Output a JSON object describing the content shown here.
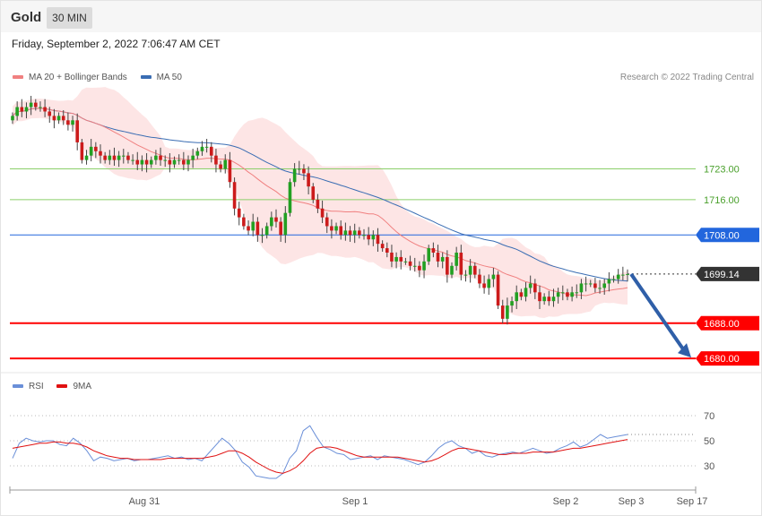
{
  "header": {
    "title": "Gold",
    "timeframe": "30 MIN"
  },
  "datetime": "Friday, September 2, 2022 7:06:47 AM CET",
  "credit": "Research © 2022 Trading Central",
  "colors": {
    "bearish": "#cc1b1b",
    "bullish": "#22a022",
    "ma20": "#f08080",
    "ma50": "#3a6db3",
    "band": "#fde2e2",
    "rsi": "#6a8fd8",
    "rsi_ma": "#e01010",
    "current": "#333333",
    "support": "#ff0000",
    "resistance_res": "#2266dd",
    "resistance_pivot": "#8bcf6a"
  },
  "chart_data": [
    {
      "type": "candlestick",
      "legend": [
        {
          "name": "MA 20 + Bollinger Bands",
          "color": "#f08080"
        },
        {
          "name": "MA 50",
          "color": "#3a6db3"
        }
      ],
      "ylim": [
        1678,
        1743
      ],
      "levels": [
        {
          "label": "1723.00",
          "value": 1723.0,
          "kind": "pivot"
        },
        {
          "label": "1716.00",
          "value": 1716.0,
          "kind": "pivot"
        },
        {
          "label": "1708.00",
          "value": 1708.0,
          "kind": "resistance"
        },
        {
          "label": "1699.14",
          "value": 1699.14,
          "kind": "current"
        },
        {
          "label": "1688.00",
          "value": 1688.0,
          "kind": "support"
        },
        {
          "label": "1680.00",
          "value": 1680.0,
          "kind": "support"
        }
      ],
      "forecast_arrow": {
        "from": 1699.14,
        "to": 1680.0,
        "direction": "down"
      },
      "closes": [
        1735,
        1737,
        1736,
        1737,
        1738,
        1737,
        1737,
        1736,
        1735,
        1734,
        1735,
        1734,
        1733,
        1734,
        1729,
        1725,
        1726,
        1728,
        1727,
        1726,
        1725,
        1726,
        1725,
        1726,
        1726,
        1725,
        1725,
        1724,
        1725,
        1724,
        1725,
        1726,
        1725,
        1725,
        1724,
        1725,
        1725,
        1724,
        1725,
        1726,
        1727,
        1728,
        1728,
        1726,
        1724,
        1723,
        1725,
        1720,
        1714,
        1712,
        1710,
        1709,
        1711,
        1708,
        1708,
        1710,
        1712,
        1711,
        1708,
        1713,
        1720,
        1723,
        1723,
        1722,
        1719,
        1716,
        1714,
        1712,
        1710,
        1709,
        1710,
        1708,
        1709,
        1708,
        1709,
        1708,
        1708,
        1707,
        1708,
        1706,
        1705,
        1704,
        1702,
        1703,
        1702,
        1702,
        1701,
        1701,
        1700,
        1702,
        1705,
        1704,
        1702,
        1703,
        1699,
        1701,
        1704,
        1699,
        1699,
        1701,
        1699,
        1697,
        1696,
        1698,
        1699,
        1692,
        1689,
        1692,
        1693,
        1695,
        1694,
        1696,
        1697,
        1695,
        1693,
        1694,
        1693,
        1694,
        1695,
        1695,
        1694,
        1695,
        1695,
        1697,
        1697,
        1697,
        1696,
        1696,
        1697,
        1698,
        1698,
        1699,
        1699,
        1699.14
      ],
      "x_ticks": [
        "Aug 31",
        "Sep 1",
        "Sep 2",
        "Sep 3",
        "Sep 17"
      ]
    },
    {
      "type": "line",
      "legend": [
        {
          "name": "RSI",
          "color": "#6a8fd8"
        },
        {
          "name": "9MA",
          "color": "#e01010"
        }
      ],
      "ylim": [
        15,
        85
      ],
      "y_ticks": [
        "70",
        "50",
        "30"
      ],
      "y_tick_values": [
        70,
        50,
        30
      ],
      "series": [
        {
          "name": "RSI",
          "values": [
            36,
            48,
            52,
            50,
            49,
            50,
            50,
            47,
            46,
            52,
            48,
            42,
            34,
            37,
            36,
            34,
            35,
            36,
            34,
            35,
            35,
            36,
            37,
            38,
            36,
            37,
            35,
            36,
            34,
            40,
            46,
            52,
            48,
            42,
            33,
            29,
            22,
            21,
            20,
            20,
            24,
            36,
            42,
            58,
            62,
            53,
            45,
            43,
            40,
            39,
            35,
            36,
            37,
            38,
            35,
            38,
            37,
            36,
            35,
            33,
            31,
            33,
            38,
            44,
            48,
            50,
            46,
            44,
            40,
            42,
            38,
            37,
            39,
            40,
            41,
            40,
            42,
            44,
            42,
            40,
            41,
            44,
            46,
            49,
            45,
            47,
            51,
            55,
            52,
            53,
            54,
            55
          ]
        },
        {
          "name": "9MA",
          "values": [
            44,
            45,
            46,
            47,
            48,
            48,
            49,
            49,
            48,
            48,
            47,
            45,
            42,
            40,
            38,
            37,
            36,
            36,
            35,
            35,
            35,
            35,
            35,
            36,
            36,
            36,
            36,
            36,
            36,
            37,
            38,
            40,
            42,
            42,
            40,
            37,
            33,
            30,
            27,
            25,
            24,
            26,
            29,
            34,
            40,
            44,
            45,
            45,
            44,
            42,
            40,
            38,
            37,
            37,
            37,
            37,
            37,
            37,
            36,
            35,
            34,
            33,
            34,
            36,
            39,
            42,
            44,
            44,
            43,
            42,
            41,
            40,
            39,
            39,
            40,
            40,
            40,
            41,
            41,
            41,
            41,
            42,
            43,
            44,
            44,
            45,
            46,
            47,
            48,
            49,
            50,
            51
          ]
        }
      ]
    }
  ]
}
